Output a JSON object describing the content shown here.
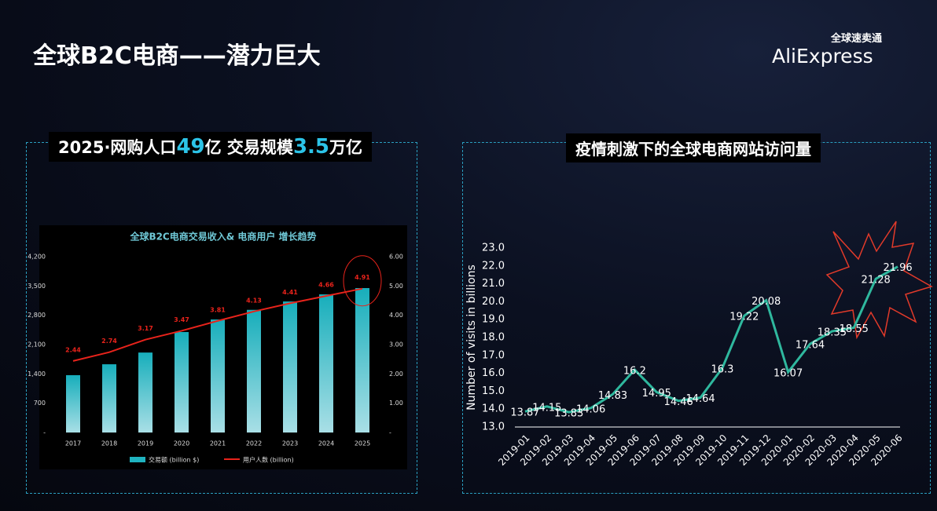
{
  "slide_title": "全球B2C电商——潜力巨大",
  "logo": {
    "name": "AliExpress",
    "subtitle": "全球速卖通"
  },
  "left_header": {
    "parts": [
      "2025·网购人口",
      "49",
      "亿 交易规模",
      "3.5",
      "万亿"
    ]
  },
  "right_header": "疫情刺激下的全球电商网站访问量",
  "chart_data": [
    {
      "type": "bar",
      "title": "全球B2C电商交易收入& 电商用户 增长趋势",
      "categories": [
        "2017",
        "2018",
        "2019",
        "2020",
        "2021",
        "2022",
        "2023",
        "2024",
        "2025"
      ],
      "series": [
        {
          "name": "交易额 (billion $)",
          "type": "bar",
          "color": "#1fb3c0",
          "values": [
            1370,
            1630,
            1910,
            2400,
            2700,
            2930,
            3130,
            3300,
            3450
          ]
        },
        {
          "name": "用户人数 (billion)",
          "type": "line",
          "axis": "y2",
          "color": "#e8231b",
          "values": [
            2.44,
            2.74,
            3.17,
            3.47,
            3.81,
            4.13,
            4.41,
            4.66,
            4.91
          ]
        }
      ],
      "ylim": [
        0,
        4200
      ],
      "yticks": [
        {
          "value": 0,
          "label": "-"
        },
        700,
        {
          "value": 1400,
          "label": "1,400"
        },
        {
          "value": 2100,
          "label": "2,100"
        },
        {
          "value": 2800,
          "label": "2,800"
        },
        {
          "value": 3500,
          "label": "3,500"
        },
        {
          "value": 4200,
          "label": "4,200"
        }
      ],
      "y2lim": [
        0,
        6
      ],
      "y2ticks": [
        {
          "value": 0,
          "label": "-"
        },
        {
          "value": 1,
          "label": "1.00"
        },
        {
          "value": 2,
          "label": "2.00"
        },
        {
          "value": 3,
          "label": "3.00"
        },
        {
          "value": 4,
          "label": "4.00"
        },
        {
          "value": 5,
          "label": "5.00"
        },
        {
          "value": 6,
          "label": "6.00"
        }
      ],
      "legend": "bottom"
    },
    {
      "type": "line",
      "ylabel": "Number of visits in billions",
      "categories": [
        "2019-01",
        "2019-02",
        "2019-03",
        "2019-04",
        "2019-05",
        "2019-06",
        "2019-07",
        "2019-08",
        "2019-09",
        "2019-10",
        "2019-11",
        "2019-12",
        "2020-01",
        "2020-02",
        "2020-03",
        "2020-04",
        "2020-05",
        "2020-06"
      ],
      "values": [
        13.87,
        14.15,
        13.83,
        14.06,
        14.83,
        16.2,
        14.95,
        14.46,
        14.64,
        16.3,
        19.22,
        20.08,
        16.07,
        17.64,
        18.35,
        18.55,
        21.28,
        21.96
      ],
      "color": "#2fb89e",
      "ylim": [
        13,
        23
      ],
      "yticks": [
        {
          "value": 13,
          "label": "13.0"
        },
        {
          "value": 14,
          "label": "14.0"
        },
        {
          "value": 15,
          "label": "15.0"
        },
        {
          "value": 16,
          "label": "16.0"
        },
        {
          "value": 17,
          "label": "17.0"
        },
        {
          "value": 18,
          "label": "18.0"
        },
        {
          "value": 19,
          "label": "19.0"
        },
        {
          "value": 20,
          "label": "20.0"
        },
        {
          "value": 21,
          "label": "21.0"
        },
        {
          "value": 22,
          "label": "22.0"
        },
        {
          "value": 23,
          "label": "23.0"
        }
      ]
    }
  ]
}
